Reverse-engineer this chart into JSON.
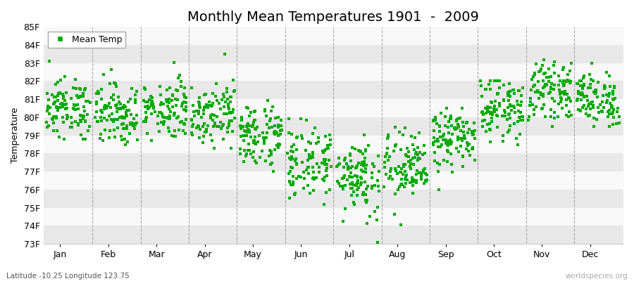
{
  "title": "Monthly Mean Temperatures 1901  -  2009",
  "ylabel": "Temperature",
  "xlabel_months": [
    "Jan",
    "Feb",
    "Mar",
    "Apr",
    "May",
    "Jun",
    "Jul",
    "Aug",
    "Sep",
    "Oct",
    "Nov",
    "Dec"
  ],
  "ylim": [
    73,
    85
  ],
  "yticks": [
    73,
    74,
    75,
    76,
    77,
    78,
    79,
    80,
    81,
    82,
    83,
    84,
    85
  ],
  "ytick_labels": [
    "73F",
    "74F",
    "75F",
    "76F",
    "77F",
    "78F",
    "79F",
    "80F",
    "81F",
    "82F",
    "83F",
    "84F",
    "85F"
  ],
  "dot_color": "#00aa00",
  "dot_size": 6,
  "background_color": "#ffffff",
  "band_color_light": "#e8e8e8",
  "band_color_white": "#f8f8f8",
  "dashed_line_color": "#888888",
  "legend_label": "Mean Temp",
  "subtitle_left": "Latitude -10.25 Longitude 123.75",
  "subtitle_right": "worldspecies.org",
  "title_fontsize": 14,
  "axis_fontsize": 9,
  "n_years": 109,
  "monthly_means": [
    80.5,
    80.2,
    80.5,
    80.3,
    79.0,
    77.5,
    76.8,
    77.2,
    78.8,
    80.5,
    81.5,
    81.0
  ],
  "monthly_stds": [
    0.8,
    0.85,
    0.8,
    0.85,
    0.9,
    1.0,
    1.1,
    1.0,
    0.8,
    0.8,
    0.75,
    0.75
  ],
  "monthly_extras": {
    "0": {
      "min": 78.8,
      "max": 83.2
    },
    "1": {
      "min": 78.5,
      "max": 83.0
    },
    "2": {
      "min": 78.5,
      "max": 83.5
    },
    "3": {
      "min": 78.3,
      "max": 83.5
    },
    "4": {
      "min": 77.0,
      "max": 81.5
    },
    "5": {
      "min": 75.0,
      "max": 80.5
    },
    "6": {
      "min": 72.8,
      "max": 79.5
    },
    "7": {
      "min": 73.5,
      "max": 80.0
    },
    "8": {
      "min": 76.0,
      "max": 80.5
    },
    "9": {
      "min": 78.5,
      "max": 82.0
    },
    "10": {
      "min": 79.5,
      "max": 84.5
    },
    "11": {
      "min": 79.5,
      "max": 83.0
    }
  }
}
